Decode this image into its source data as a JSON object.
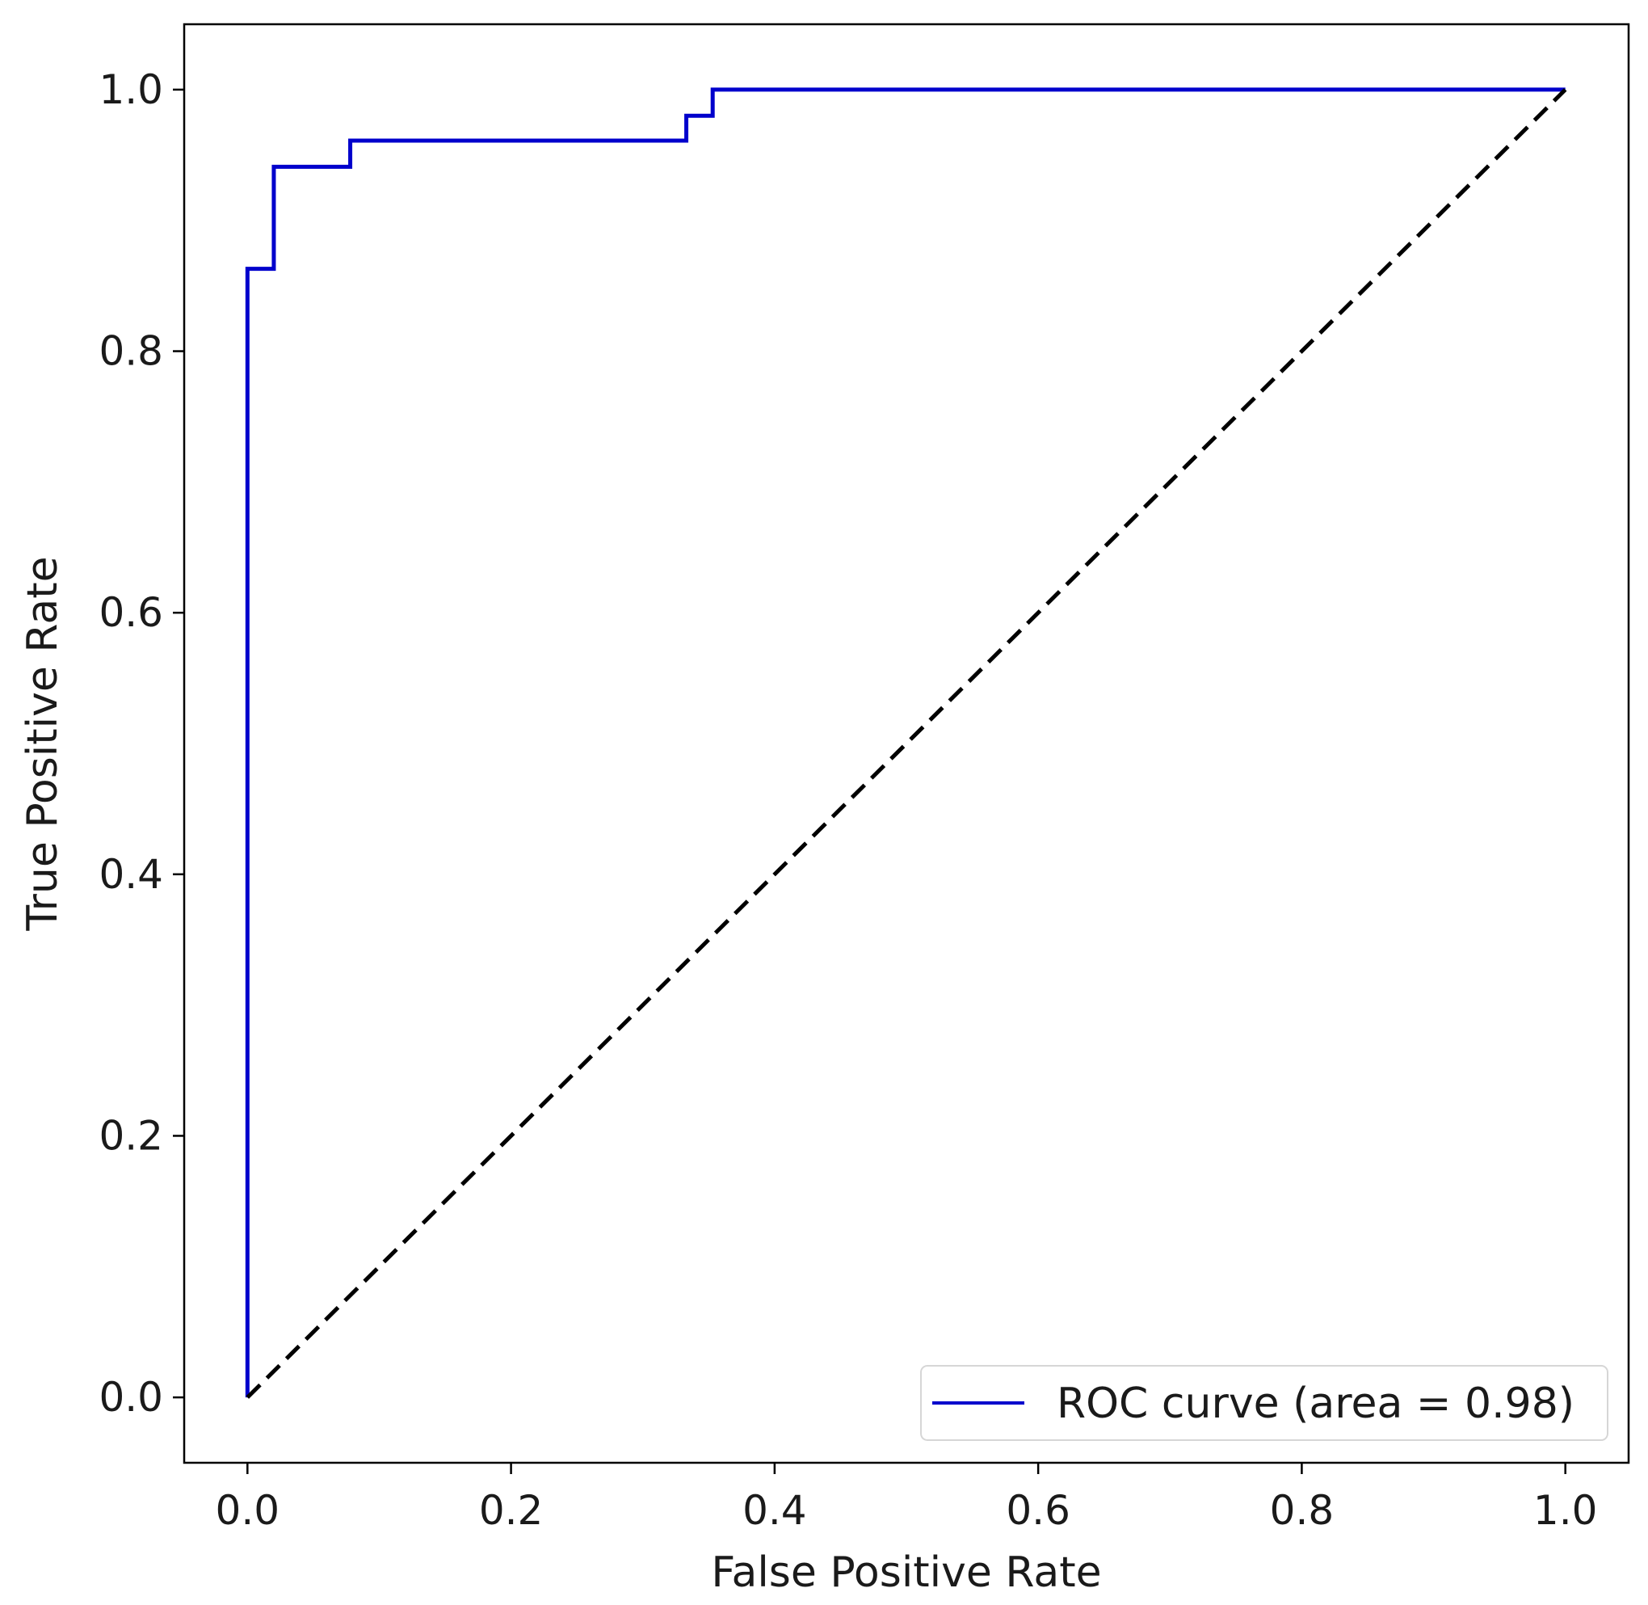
{
  "chart_data": {
    "type": "line",
    "xlabel": "False Positive Rate",
    "ylabel": "True Positive Rate",
    "xlim": [
      -0.048,
      1.048
    ],
    "ylim": [
      -0.05,
      1.05
    ],
    "x_ticks": [
      0.0,
      0.2,
      0.4,
      0.6,
      0.8,
      1.0
    ],
    "x_tick_labels": [
      "0.0",
      "0.2",
      "0.4",
      "0.6",
      "0.8",
      "1.0"
    ],
    "y_ticks": [
      0.0,
      0.2,
      0.4,
      0.6,
      0.8,
      1.0
    ],
    "y_tick_labels": [
      "0.0",
      "0.2",
      "0.4",
      "0.6",
      "0.8",
      "1.0"
    ],
    "grid": false,
    "legend_position": "lower-right",
    "series": [
      {
        "name": "ROC curve (area = 0.98)",
        "color": "#0000cc",
        "style": "solid",
        "x": [
          0.0,
          0.0,
          0.02,
          0.02,
          0.078,
          0.078,
          0.333,
          0.333,
          0.353,
          0.353,
          1.0
        ],
        "y": [
          0.0,
          0.863,
          0.863,
          0.941,
          0.941,
          0.961,
          0.961,
          0.98,
          0.98,
          1.0,
          1.0
        ]
      },
      {
        "color": "#000000",
        "style": "dashed",
        "x": [
          0.0,
          1.0
        ],
        "y": [
          0.0,
          1.0
        ]
      }
    ]
  }
}
